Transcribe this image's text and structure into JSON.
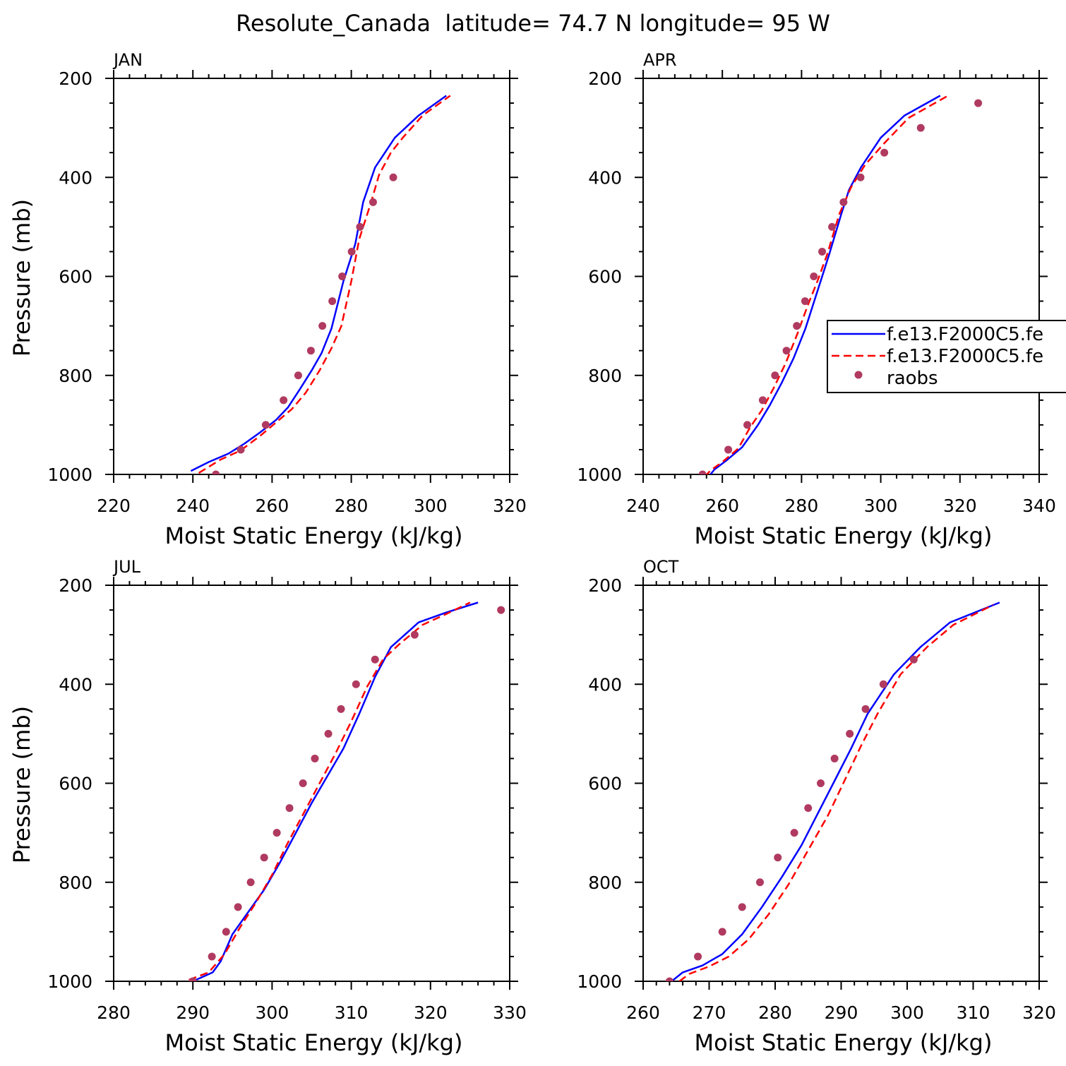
{
  "figure": {
    "title": "Resolute_Canada  latitude= 74.7 N longitude= 95 W"
  },
  "colors": {
    "model1": "#0000ff",
    "model2": "#ff0000",
    "raobs": "#b03a60",
    "axis": "#000000"
  },
  "legend": {
    "panel": "APR",
    "placement": "right edge, middle",
    "entries": [
      {
        "label": "f.e13.F2000C5.fe",
        "style": "solid",
        "color": "#0000ff"
      },
      {
        "label": "f.e13.F2000C5.fe",
        "style": "dashed",
        "color": "#ff0000"
      },
      {
        "label": "raobs",
        "style": "dot",
        "color": "#b03a60"
      }
    ]
  },
  "chart_data": [
    {
      "type": "line",
      "panel": "JAN",
      "title": "JAN",
      "xlabel": "Moist Static Energy (kJ/kg)",
      "ylabel": "Pressure (mb)",
      "xlim": [
        220,
        320
      ],
      "xticks": [
        220,
        240,
        260,
        280,
        300,
        320
      ],
      "ylim": [
        1000,
        200
      ],
      "yticks": [
        200,
        400,
        600,
        800,
        1000
      ],
      "grid": false,
      "series": [
        {
          "style": "solid",
          "color": "#0000ff",
          "x": [
            239.5,
            244,
            249,
            253,
            257,
            261,
            264,
            267,
            270,
            272.5,
            275,
            278,
            281,
            283,
            286,
            291,
            297,
            304
          ],
          "y": [
            993,
            975,
            958,
            938,
            915,
            890,
            865,
            828,
            790,
            755,
            705,
            610,
            535,
            450,
            380,
            320,
            275,
            235
          ]
        },
        {
          "style": "dashed",
          "color": "#ff0000",
          "x": [
            241.5,
            247,
            252,
            257,
            261,
            265,
            268.5,
            272,
            275,
            277.5,
            280,
            282,
            285,
            287,
            290,
            293,
            298,
            305
          ],
          "y": [
            997,
            970,
            952,
            922,
            895,
            868,
            835,
            790,
            745,
            700,
            610,
            525,
            450,
            395,
            350,
            320,
            275,
            235
          ]
        },
        {
          "style": "dot",
          "color": "#b03a60",
          "x": [
            245.8,
            252.1,
            258.4,
            262.9,
            266.6,
            269.8,
            272.7,
            275.2,
            277.7,
            280.1,
            282.2,
            285.5,
            290.6
          ],
          "y": [
            1000,
            950,
            900,
            850,
            800,
            750,
            700,
            650,
            600,
            550,
            500,
            450,
            400
          ]
        }
      ]
    },
    {
      "type": "line",
      "panel": "APR",
      "title": "APR",
      "xlabel": "Moist Static Energy (kJ/kg)",
      "ylabel": "",
      "xlim": [
        240,
        340
      ],
      "xticks": [
        240,
        260,
        280,
        300,
        320,
        340
      ],
      "ylim": [
        1000,
        200
      ],
      "yticks": [
        200,
        400,
        600,
        800,
        1000
      ],
      "grid": false,
      "series": [
        {
          "style": "solid",
          "color": "#0000ff",
          "x": [
            257,
            258,
            261,
            265,
            269,
            272,
            275,
            278,
            281,
            283,
            285,
            287,
            290,
            292,
            295,
            300,
            306,
            315
          ],
          "y": [
            1000,
            990,
            972,
            945,
            900,
            860,
            815,
            765,
            705,
            655,
            605,
            555,
            475,
            425,
            380,
            320,
            275,
            235
          ]
        },
        {
          "style": "dashed",
          "color": "#ff0000",
          "x": [
            255.5,
            257,
            260,
            264,
            267,
            270,
            273,
            276,
            279,
            281.5,
            284,
            286.5,
            289.5,
            292.5,
            296,
            301,
            307,
            317
          ],
          "y": [
            1005,
            992,
            975,
            948,
            905,
            870,
            825,
            775,
            715,
            660,
            610,
            555,
            475,
            420,
            375,
            330,
            280,
            235
          ]
        },
        {
          "style": "dot",
          "color": "#b03a60",
          "x": [
            255,
            261.5,
            266.3,
            270.2,
            273.3,
            276.2,
            278.8,
            280.9,
            283.1,
            285.2,
            287.7,
            290.6,
            294.9,
            300.9,
            310.1,
            324.6
          ],
          "y": [
            1000,
            950,
            900,
            850,
            800,
            750,
            700,
            650,
            600,
            550,
            500,
            450,
            400,
            350,
            300,
            250
          ]
        }
      ]
    },
    {
      "type": "line",
      "panel": "JUL",
      "title": "JUL",
      "xlabel": "Moist Static Energy (kJ/kg)",
      "ylabel": "Pressure (mb)",
      "xlim": [
        280,
        330
      ],
      "xticks": [
        280,
        290,
        300,
        310,
        320,
        330
      ],
      "ylim": [
        1000,
        200
      ],
      "yticks": [
        200,
        400,
        600,
        800,
        1000
      ],
      "grid": false,
      "series": [
        {
          "style": "solid",
          "color": "#0000ff",
          "x": [
            290,
            292.5,
            293.5,
            295,
            297,
            299,
            301,
            303,
            305,
            307,
            309,
            311,
            313,
            315,
            318.5,
            322,
            326
          ],
          "y": [
            1000,
            982,
            960,
            905,
            860,
            815,
            760,
            700,
            640,
            585,
            530,
            460,
            385,
            325,
            275,
            255,
            235
          ]
        },
        {
          "style": "dashed",
          "color": "#ff0000",
          "x": [
            289.5,
            292,
            294,
            296,
            298,
            300,
            302,
            304,
            306,
            308,
            310,
            312,
            314,
            316,
            319,
            322,
            325
          ],
          "y": [
            997,
            982,
            945,
            890,
            840,
            785,
            720,
            660,
            600,
            540,
            475,
            405,
            350,
            320,
            280,
            258,
            235
          ]
        },
        {
          "style": "dot",
          "color": "#b03a60",
          "x": [
            290,
            292.4,
            294.2,
            295.7,
            297.3,
            299,
            300.6,
            302.2,
            303.9,
            305.4,
            307.1,
            308.7,
            310.6,
            313,
            318,
            328.9
          ],
          "y": [
            1000,
            950,
            900,
            850,
            800,
            750,
            700,
            650,
            600,
            550,
            500,
            450,
            400,
            350,
            300,
            250
          ]
        }
      ]
    },
    {
      "type": "line",
      "panel": "OCT",
      "title": "OCT",
      "xlabel": "Moist Static Energy (kJ/kg)",
      "ylabel": "",
      "xlim": [
        260,
        320
      ],
      "xticks": [
        260,
        270,
        280,
        290,
        300,
        310,
        320
      ],
      "ylim": [
        1000,
        200
      ],
      "yticks": [
        200,
        400,
        600,
        800,
        1000
      ],
      "grid": false,
      "series": [
        {
          "style": "solid",
          "color": "#0000ff",
          "x": [
            264.5,
            266,
            269,
            272,
            275,
            278,
            281,
            284,
            286.5,
            289,
            291.5,
            294,
            298,
            302,
            306.5,
            314
          ],
          "y": [
            998,
            982,
            968,
            945,
            905,
            850,
            790,
            725,
            660,
            595,
            530,
            460,
            380,
            325,
            275,
            235
          ]
        },
        {
          "style": "dashed",
          "color": "#ff0000",
          "x": [
            265.5,
            267,
            270,
            273,
            276,
            279,
            282,
            285,
            288,
            290.5,
            293,
            295.5,
            299,
            303,
            307,
            313
          ],
          "y": [
            1000,
            985,
            970,
            950,
            915,
            865,
            805,
            735,
            665,
            595,
            525,
            460,
            380,
            325,
            280,
            240
          ]
        },
        {
          "style": "dot",
          "color": "#b03a60",
          "x": [
            264,
            268.3,
            272,
            275,
            277.7,
            280.4,
            282.9,
            285,
            286.9,
            289,
            291.3,
            293.7,
            296.4,
            301
          ],
          "y": [
            1000,
            950,
            900,
            850,
            800,
            750,
            700,
            650,
            600,
            550,
            500,
            450,
            400,
            350
          ]
        }
      ]
    }
  ]
}
